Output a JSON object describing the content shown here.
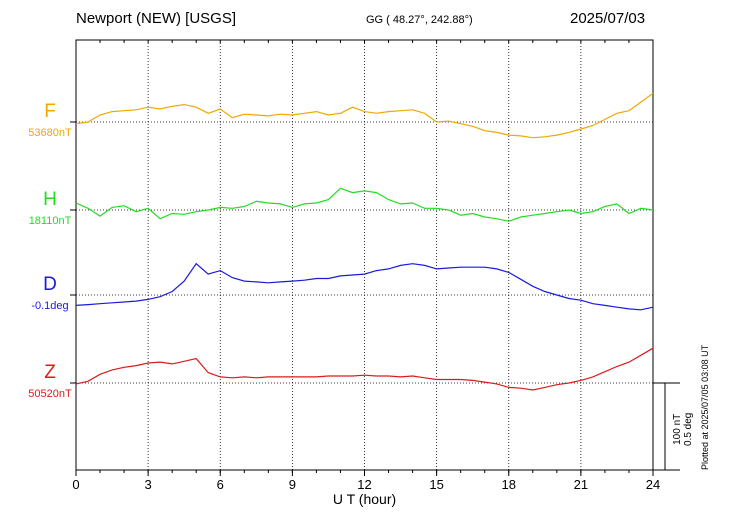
{
  "header": {
    "station": "Newport (NEW)  [USGS]",
    "coords": "GG ( 48.27°, 242.88°)",
    "date": "2025/07/03"
  },
  "plotted_note": "Plotted at 2025/07/05 03:08 UT",
  "scale_labels": [
    "100 nT",
    "0.5 deg"
  ],
  "chart_data": {
    "type": "line",
    "xlabel": "U T (hour)",
    "xlim": [
      0,
      24
    ],
    "xticks": [
      0,
      3,
      6,
      9,
      12,
      15,
      18,
      21,
      24
    ],
    "grid": true,
    "scale_bar": {
      "nT": 100,
      "deg": 0.5
    },
    "series": [
      {
        "name": "F",
        "baseline_label": "53680nT",
        "baseline": 53680,
        "unit": "nT",
        "color": "#f0a800",
        "x": [
          0,
          0.5,
          1,
          1.5,
          2,
          2.5,
          3,
          3.5,
          4,
          4.5,
          5,
          5.5,
          6,
          6.5,
          7,
          7.5,
          8,
          8.5,
          9,
          9.5,
          10,
          10.5,
          11,
          11.5,
          12,
          12.5,
          13,
          13.5,
          14,
          14.5,
          15,
          15.5,
          16,
          16.5,
          17,
          17.5,
          18,
          18.5,
          19,
          19.5,
          20,
          20.5,
          21,
          21.5,
          22,
          22.5,
          23,
          23.5,
          24
        ],
        "y": [
          53678,
          53680,
          53688,
          53692,
          53693,
          53694,
          53697,
          53695,
          53698,
          53700,
          53697,
          53690,
          53695,
          53685,
          53689,
          53688,
          53687,
          53689,
          53688,
          53690,
          53692,
          53688,
          53690,
          53697,
          53692,
          53690,
          53692,
          53693,
          53694,
          53690,
          53680,
          53681,
          53678,
          53675,
          53670,
          53668,
          53665,
          53664,
          53662,
          53663,
          53665,
          53668,
          53672,
          53676,
          53683,
          53690,
          53693,
          53703,
          53713
        ]
      },
      {
        "name": "H",
        "baseline_label": "18110nT",
        "baseline": 18110,
        "unit": "nT",
        "color": "#22dd22",
        "x": [
          0,
          0.5,
          1,
          1.5,
          2,
          2.5,
          3,
          3.5,
          4,
          4.5,
          5,
          5.5,
          6,
          6.5,
          7,
          7.5,
          8,
          8.5,
          9,
          9.5,
          10,
          10.5,
          11,
          11.5,
          12,
          12.5,
          13,
          13.5,
          14,
          14.5,
          15,
          15.5,
          16,
          16.5,
          17,
          17.5,
          18,
          18.5,
          19,
          19.5,
          20,
          20.5,
          21,
          21.5,
          22,
          22.5,
          23,
          23.5,
          24
        ],
        "y": [
          18118,
          18112,
          18103,
          18113,
          18115,
          18108,
          18112,
          18100,
          18106,
          18105,
          18108,
          18110,
          18113,
          18112,
          18114,
          18120,
          18118,
          18117,
          18113,
          18117,
          18118,
          18122,
          18135,
          18130,
          18132,
          18130,
          18122,
          18117,
          18118,
          18112,
          18112,
          18110,
          18104,
          18106,
          18102,
          18100,
          18097,
          18102,
          18104,
          18106,
          18108,
          18110,
          18106,
          18108,
          18114,
          18117,
          18106,
          18112,
          18110
        ]
      },
      {
        "name": "D",
        "baseline_label": "-0.1deg",
        "baseline": -0.1,
        "unit": "deg",
        "color": "#1a1add",
        "x": [
          0,
          0.5,
          1,
          1.5,
          2,
          2.5,
          3,
          3.5,
          4,
          4.5,
          5,
          5.5,
          6,
          6.5,
          7,
          7.5,
          8,
          8.5,
          9,
          9.5,
          10,
          10.5,
          11,
          11.5,
          12,
          12.5,
          13,
          13.5,
          14,
          14.5,
          15,
          15.5,
          16,
          16.5,
          17,
          17.5,
          18,
          18.5,
          19,
          19.5,
          20,
          20.5,
          21,
          21.5,
          22,
          22.5,
          23,
          23.5,
          24
        ],
        "y": [
          -0.16,
          -0.155,
          -0.15,
          -0.145,
          -0.14,
          -0.135,
          -0.125,
          -0.11,
          -0.08,
          -0.02,
          0.08,
          0.02,
          0.04,
          0.0,
          -0.02,
          -0.025,
          -0.03,
          -0.025,
          -0.02,
          -0.015,
          -0.005,
          -0.005,
          0.01,
          0.015,
          0.02,
          0.04,
          0.05,
          0.07,
          0.08,
          0.07,
          0.05,
          0.055,
          0.06,
          0.06,
          0.06,
          0.05,
          0.03,
          -0.01,
          -0.05,
          -0.08,
          -0.1,
          -0.12,
          -0.13,
          -0.15,
          -0.16,
          -0.17,
          -0.18,
          -0.185,
          -0.17
        ]
      },
      {
        "name": "Z",
        "baseline_label": "50520nT",
        "baseline": 50520,
        "unit": "nT",
        "color": "#dd1a1a",
        "x": [
          0,
          0.5,
          1,
          1.5,
          2,
          2.5,
          3,
          3.5,
          4,
          4.5,
          5,
          5.5,
          6,
          6.5,
          7,
          7.5,
          8,
          8.5,
          9,
          9.5,
          10,
          10.5,
          11,
          11.5,
          12,
          12.5,
          13,
          13.5,
          14,
          14.5,
          15,
          15.5,
          16,
          16.5,
          17,
          17.5,
          18,
          18.5,
          19,
          19.5,
          20,
          20.5,
          21,
          21.5,
          22,
          22.5,
          23,
          23.5,
          24
        ],
        "y": [
          50519,
          50522,
          50530,
          50535,
          50538,
          50540,
          50543,
          50544,
          50542,
          50545,
          50548,
          50532,
          50527,
          50526,
          50527,
          50526,
          50527,
          50527,
          50527,
          50527,
          50527,
          50528,
          50528,
          50528,
          50529,
          50528,
          50528,
          50527,
          50528,
          50526,
          50524,
          50524,
          50524,
          50523,
          50521,
          50519,
          50515,
          50514,
          50512,
          50515,
          50518,
          50520,
          50523,
          50527,
          50533,
          50539,
          50544,
          50552,
          50560
        ]
      }
    ]
  }
}
